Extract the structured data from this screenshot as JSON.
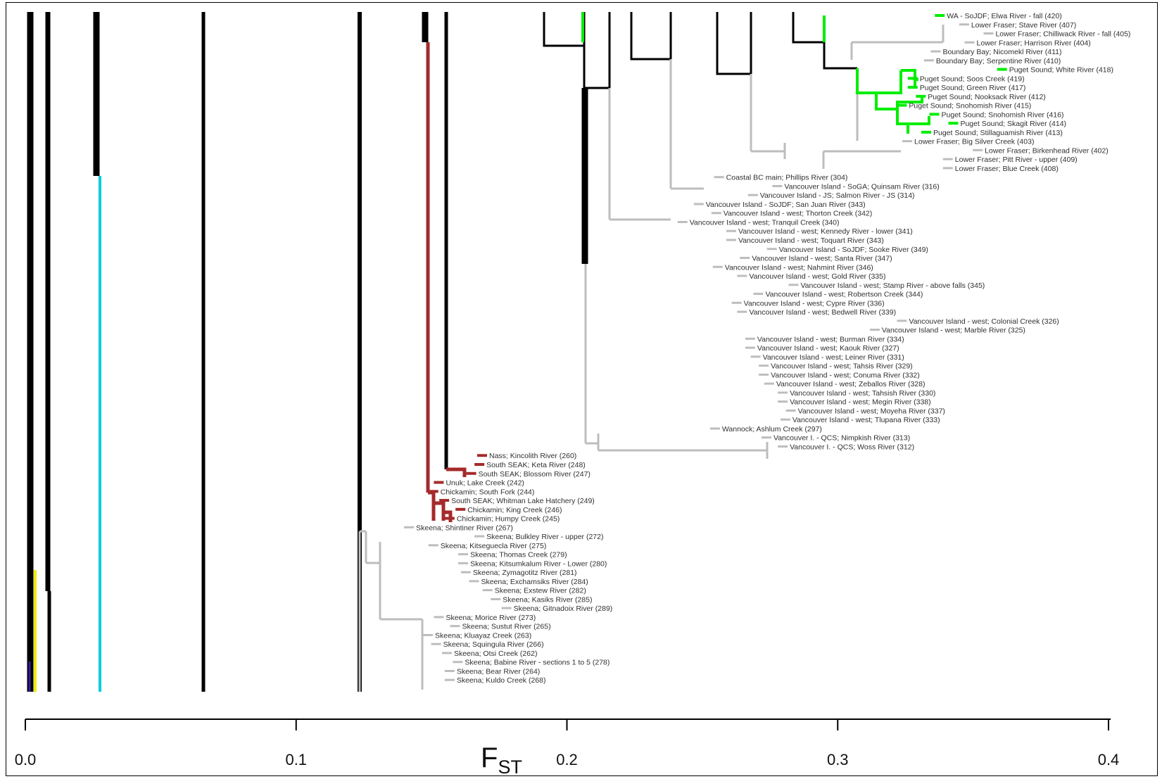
{
  "axis": {
    "label_main": "F",
    "label_sub": "ST",
    "min": 0.0,
    "max": 0.4,
    "ticks": [
      {
        "value": 0.0,
        "label": "0.0"
      },
      {
        "value": 0.1,
        "label": "0.1"
      },
      {
        "value": 0.2,
        "label": "0.2"
      },
      {
        "value": 0.3,
        "label": "0.3"
      },
      {
        "value": 0.4,
        "label": "0.4"
      }
    ]
  },
  "colors": {
    "default": "#000000",
    "gray": "#bdbdbd",
    "green": "#00ee00",
    "maroon": "#a52a2a",
    "cyan": "#00ccdd",
    "yellow": "#eeee00",
    "purple": "#3a1aa0"
  },
  "leaves": [
    {
      "name": "WA - SoJDF; Elwa River - fall (420)",
      "fst": 0.3395,
      "color": "green"
    },
    {
      "name": "Lower Fraser; Stave River (407)",
      "fst": 0.3485,
      "color": "gray"
    },
    {
      "name": "Lower Fraser; Chilliwack River - fall (405)",
      "fst": 0.3575,
      "color": "gray"
    },
    {
      "name": "Lower Fraser; Harrison River (404)",
      "fst": 0.3505,
      "color": "gray"
    },
    {
      "name": "Boundary Bay; Nicomekl River (411)",
      "fst": 0.338,
      "color": "gray"
    },
    {
      "name": "Boundary Bay; Serpentine River (410)",
      "fst": 0.3355,
      "color": "gray"
    },
    {
      "name": "Puget Sound; White River (418)",
      "fst": 0.3625,
      "color": "green"
    },
    {
      "name": "Puget Sound; Soos Creek (419)",
      "fst": 0.3295,
      "color": "green"
    },
    {
      "name": "Puget Sound; Green River (417)",
      "fst": 0.3295,
      "color": "green"
    },
    {
      "name": "Puget Sound; Nooksack River (412)",
      "fst": 0.3325,
      "color": "green"
    },
    {
      "name": "Puget Sound; Snohomish River (415)",
      "fst": 0.3255,
      "color": "green"
    },
    {
      "name": "Puget Sound; Snohomish River (416)",
      "fst": 0.3375,
      "color": "green"
    },
    {
      "name": "Puget Sound; Skagit River (414)",
      "fst": 0.3445,
      "color": "green"
    },
    {
      "name": "Puget Sound; Stillaguamish River (413)",
      "fst": 0.3345,
      "color": "green"
    },
    {
      "name": "Lower Fraser; Big Silver Creek (403)",
      "fst": 0.3275,
      "color": "gray"
    },
    {
      "name": "Lower Fraser; Birkenhead River (402)",
      "fst": 0.3535,
      "color": "gray"
    },
    {
      "name": "Lower Fraser; Pitt River - upper (409)",
      "fst": 0.3425,
      "color": "gray"
    },
    {
      "name": "Lower Fraser; Blue Creek (408)",
      "fst": 0.3425,
      "color": "gray"
    },
    {
      "name": "Coastal BC main; Phillips River (304)",
      "fst": 0.258,
      "color": "gray"
    },
    {
      "name": "Vancouver Island - SoGA; Quinsam River (316)",
      "fst": 0.2795,
      "color": "gray"
    },
    {
      "name": "Vancouver Island - JS; Salmon River - JS (314)",
      "fst": 0.2705,
      "color": "gray"
    },
    {
      "name": "Vancouver Island - SoJDF; San Juan River (343)",
      "fst": 0.2505,
      "color": "gray"
    },
    {
      "name": "Vancouver Island - west; Thorton Creek (342)",
      "fst": 0.257,
      "color": "gray"
    },
    {
      "name": "Vancouver Island - west; Tranquil Creek (340)",
      "fst": 0.2445,
      "color": "gray"
    },
    {
      "name": "Vancouver Island - west; Kennedy River - lower (341)",
      "fst": 0.2625,
      "color": "gray"
    },
    {
      "name": "Vancouver Island - west; Toquart River (343)",
      "fst": 0.2625,
      "color": "gray"
    },
    {
      "name": "Vancouver Island - SoJDF; Sooke River (349)",
      "fst": 0.2775,
      "color": "gray"
    },
    {
      "name": "Vancouver Island - west; Santa River (347)",
      "fst": 0.2675,
      "color": "gray"
    },
    {
      "name": "Vancouver Island - west; Nahmint River (346)",
      "fst": 0.2575,
      "color": "gray"
    },
    {
      "name": "Vancouver Island - west; Gold River (335)",
      "fst": 0.2665,
      "color": "gray"
    },
    {
      "name": "Vancouver Island - west; Stamp River - above falls (345)",
      "fst": 0.2855,
      "color": "gray"
    },
    {
      "name": "Vancouver Island - west; Robertson Creek (344)",
      "fst": 0.2725,
      "color": "gray"
    },
    {
      "name": "Vancouver Island - west; Cypre River (336)",
      "fst": 0.2645,
      "color": "gray"
    },
    {
      "name": "Vancouver Island - west; Bedwell River (339)",
      "fst": 0.2665,
      "color": "gray"
    },
    {
      "name": "Vancouver Island - west; Colonial Creek (326)",
      "fst": 0.3255,
      "color": "gray"
    },
    {
      "name": "Vancouver Island - west; Marble River (325)",
      "fst": 0.3155,
      "color": "gray"
    },
    {
      "name": "Vancouver Island - west; Burman River (334)",
      "fst": 0.2695,
      "color": "gray"
    },
    {
      "name": "Vancouver Island - west; Kaouk River (327)",
      "fst": 0.2695,
      "color": "gray"
    },
    {
      "name": "Vancouver Island - west; Leiner River (331)",
      "fst": 0.2715,
      "color": "gray"
    },
    {
      "name": "Vancouver Island - west; Tahsis River (329)",
      "fst": 0.2745,
      "color": "gray"
    },
    {
      "name": "Vancouver Island - west; Conuma River (332)",
      "fst": 0.2745,
      "color": "gray"
    },
    {
      "name": "Vancouver Island - west; Zeballos River (328)",
      "fst": 0.2765,
      "color": "gray"
    },
    {
      "name": "Vancouver Island - west; Tahsish River (330)",
      "fst": 0.2815,
      "color": "gray"
    },
    {
      "name": "Vancouver Island - west; Megin River (338)",
      "fst": 0.2815,
      "color": "gray"
    },
    {
      "name": "Vancouver Island - west; Moyeha River (337)",
      "fst": 0.2845,
      "color": "gray"
    },
    {
      "name": "Vancouver Island - west; Tlupana River (333)",
      "fst": 0.2825,
      "color": "gray"
    },
    {
      "name": "Wannock; Ashlum Creek (297)",
      "fst": 0.2565,
      "color": "gray"
    },
    {
      "name": "Vancouver I. - QCS; Nimpkish River (313)",
      "fst": 0.2755,
      "color": "gray"
    },
    {
      "name": "Vancouver I. - QCS; Woss River (312)",
      "fst": 0.2815,
      "color": "gray"
    },
    {
      "name": "Nass; Kincolith River (260)",
      "fst": 0.1705,
      "color": "maroon"
    },
    {
      "name": "South SEAK; Keta River (248)",
      "fst": 0.1695,
      "color": "maroon"
    },
    {
      "name": "South SEAK; Blossom River (247)",
      "fst": 0.1665,
      "color": "maroon"
    },
    {
      "name": "Unuk; Lake Creek (242)",
      "fst": 0.1545,
      "color": "maroon"
    },
    {
      "name": "Chickamin; South Fork (244)",
      "fst": 0.1525,
      "color": "maroon"
    },
    {
      "name": "South SEAK; Whitman Lake Hatchery (249)",
      "fst": 0.1565,
      "color": "maroon"
    },
    {
      "name": "Chickamin; King Creek (246)",
      "fst": 0.1625,
      "color": "maroon"
    },
    {
      "name": "Chickamin; Humpy Creek (245)",
      "fst": 0.1585,
      "color": "maroon"
    },
    {
      "name": "Skeena; Shintiner River (267)",
      "fst": 0.1435,
      "color": "gray"
    },
    {
      "name": "Skeena; Bulkley River - upper (272)",
      "fst": 0.1695,
      "color": "gray"
    },
    {
      "name": "Skeena; Kitseguecla River (275)",
      "fst": 0.1525,
      "color": "gray"
    },
    {
      "name": "Skeena; Thomas Creek (279)",
      "fst": 0.1635,
      "color": "gray"
    },
    {
      "name": "Skeena; Kitsumkalum River - Lower (280)",
      "fst": 0.1635,
      "color": "gray"
    },
    {
      "name": "Skeena; Zymagotitz River (281)",
      "fst": 0.1645,
      "color": "gray"
    },
    {
      "name": "Skeena; Exchamsiks River (284)",
      "fst": 0.1675,
      "color": "gray"
    },
    {
      "name": "Skeena; Exstew River (282)",
      "fst": 0.1725,
      "color": "gray"
    },
    {
      "name": "Skeena; Kasiks River (285)",
      "fst": 0.1755,
      "color": "gray"
    },
    {
      "name": "Skeena; Gitnadoix River (289)",
      "fst": 0.1795,
      "color": "gray"
    },
    {
      "name": "Skeena; Morice River (273)",
      "fst": 0.1545,
      "color": "gray"
    },
    {
      "name": "Skeena; Sustut River (265)",
      "fst": 0.1605,
      "color": "gray"
    },
    {
      "name": "Skeena; Kluayaz Creek (263)",
      "fst": 0.1505,
      "color": "gray"
    },
    {
      "name": "Skeena; Squingula River (266)",
      "fst": 0.1535,
      "color": "gray"
    },
    {
      "name": "Skeena; Otsi Creek (262)",
      "fst": 0.1575,
      "color": "gray"
    },
    {
      "name": "Skeena; Babine River - sections 1 to 5 (278)",
      "fst": 0.1615,
      "color": "gray"
    },
    {
      "name": "Skeena; Bear River (264)",
      "fst": 0.1585,
      "color": "gray"
    },
    {
      "name": "Skeena; Kuldo Creek (268)",
      "fst": 0.1585,
      "color": "gray"
    }
  ],
  "backbone": [
    {
      "fst": 0.002,
      "color": "default"
    },
    {
      "fst": 0.008,
      "color": "default"
    },
    {
      "fst": 0.027,
      "color": "cyan"
    },
    {
      "fst": 0.066,
      "color": "default"
    },
    {
      "fst": 0.124,
      "color": "default"
    },
    {
      "fst": 0.149,
      "color": "maroon"
    },
    {
      "fst": 0.156,
      "color": "default"
    },
    {
      "fst": 0.207,
      "color": "default"
    },
    {
      "fst": 0.296,
      "color": "green"
    }
  ]
}
